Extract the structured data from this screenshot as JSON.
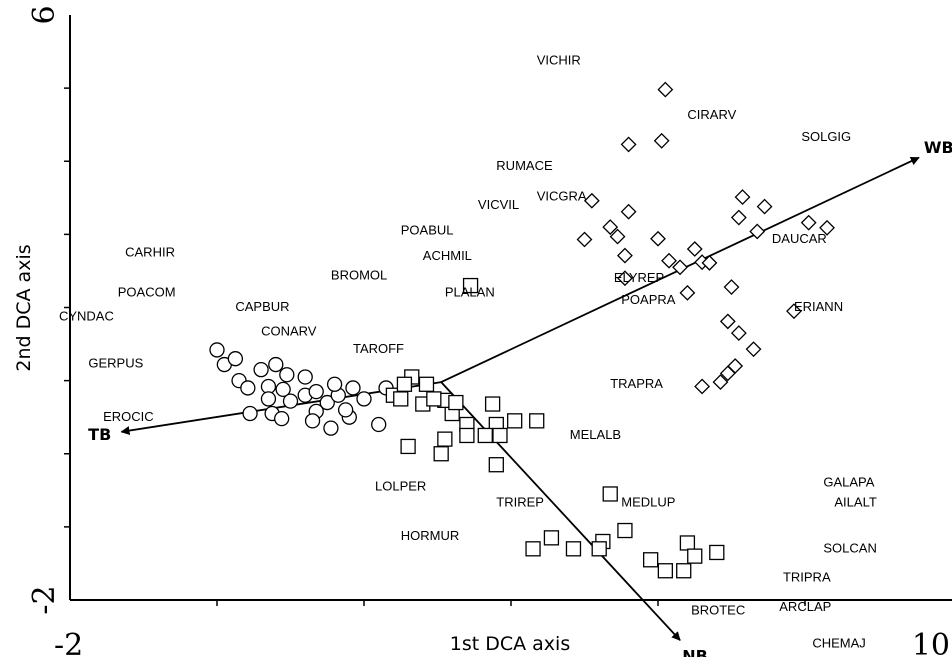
{
  "chart_data": {
    "type": "scatter",
    "xlabel": "1st DCA axis",
    "ylabel": "2nd DCA axis",
    "xlim": [
      -2,
      10
    ],
    "ylim": [
      -2,
      6
    ],
    "x_tick_labels": [
      {
        "value": -2,
        "label": "-2"
      },
      {
        "value": 10,
        "label": "10"
      }
    ],
    "y_tick_labels": [
      {
        "value": -2,
        "label": "-2"
      },
      {
        "value": 6,
        "label": "6"
      }
    ],
    "x_minor_ticks": [
      0,
      2,
      4,
      6,
      8
    ],
    "y_minor_ticks": [
      -1,
      0,
      1,
      2,
      3,
      4,
      5
    ],
    "grid": false,
    "series": [
      {
        "marker": "circle",
        "points": [
          {
            "x": 0.0,
            "y": 1.42
          },
          {
            "x": 0.1,
            "y": 1.22
          },
          {
            "x": 0.3,
            "y": 1.0
          },
          {
            "x": 0.25,
            "y": 1.3
          },
          {
            "x": 0.6,
            "y": 1.15
          },
          {
            "x": 0.8,
            "y": 1.22
          },
          {
            "x": 0.95,
            "y": 1.08
          },
          {
            "x": 0.7,
            "y": 0.92
          },
          {
            "x": 0.9,
            "y": 0.88
          },
          {
            "x": 0.42,
            "y": 0.9
          },
          {
            "x": 0.7,
            "y": 0.75
          },
          {
            "x": 1.2,
            "y": 1.05
          },
          {
            "x": 1.0,
            "y": 0.72
          },
          {
            "x": 1.2,
            "y": 0.8
          },
          {
            "x": 0.45,
            "y": 0.55
          },
          {
            "x": 0.75,
            "y": 0.55
          },
          {
            "x": 0.88,
            "y": 0.48
          },
          {
            "x": 1.35,
            "y": 0.58
          },
          {
            "x": 1.5,
            "y": 0.7
          },
          {
            "x": 1.65,
            "y": 0.8
          },
          {
            "x": 1.6,
            "y": 0.95
          },
          {
            "x": 1.85,
            "y": 0.9
          },
          {
            "x": 1.3,
            "y": 0.45
          },
          {
            "x": 1.55,
            "y": 0.35
          },
          {
            "x": 1.8,
            "y": 0.5
          },
          {
            "x": 1.35,
            "y": 0.85
          },
          {
            "x": 1.75,
            "y": 0.6
          },
          {
            "x": 2.2,
            "y": 0.4
          },
          {
            "x": 2.0,
            "y": 0.75
          },
          {
            "x": 2.3,
            "y": 0.9
          }
        ]
      },
      {
        "marker": "square",
        "points": [
          {
            "x": 3.45,
            "y": 2.3
          },
          {
            "x": 2.65,
            "y": 1.05
          },
          {
            "x": 2.85,
            "y": 0.95
          },
          {
            "x": 2.8,
            "y": 0.68
          },
          {
            "x": 3.75,
            "y": 0.68
          },
          {
            "x": 3.2,
            "y": 0.55
          },
          {
            "x": 3.1,
            "y": 0.73
          },
          {
            "x": 2.4,
            "y": 0.8
          },
          {
            "x": 2.55,
            "y": 0.95
          },
          {
            "x": 2.95,
            "y": 0.75
          },
          {
            "x": 3.05,
            "y": 0.0
          },
          {
            "x": 3.1,
            "y": 0.2
          },
          {
            "x": 2.6,
            "y": 0.1
          },
          {
            "x": 3.8,
            "y": 0.4
          },
          {
            "x": 4.05,
            "y": 0.45
          },
          {
            "x": 4.35,
            "y": 0.45
          },
          {
            "x": 3.8,
            "y": -0.15
          },
          {
            "x": 3.4,
            "y": 0.4
          },
          {
            "x": 3.4,
            "y": 0.25
          },
          {
            "x": 3.65,
            "y": 0.25
          },
          {
            "x": 3.85,
            "y": 0.25
          },
          {
            "x": 2.5,
            "y": 0.75
          },
          {
            "x": 3.25,
            "y": 0.7
          },
          {
            "x": 5.35,
            "y": -0.55
          },
          {
            "x": 5.55,
            "y": -1.05
          },
          {
            "x": 5.25,
            "y": -1.2
          },
          {
            "x": 5.2,
            "y": -1.3
          },
          {
            "x": 4.85,
            "y": -1.3
          },
          {
            "x": 4.3,
            "y": -1.3
          },
          {
            "x": 4.55,
            "y": -1.15
          },
          {
            "x": 6.4,
            "y": -1.22
          },
          {
            "x": 6.35,
            "y": -1.6
          },
          {
            "x": 6.5,
            "y": -1.4
          },
          {
            "x": 5.9,
            "y": -1.45
          },
          {
            "x": 6.1,
            "y": -1.6
          },
          {
            "x": 6.8,
            "y": -1.35
          }
        ]
      },
      {
        "marker": "diamond",
        "points": [
          {
            "x": 6.1,
            "y": 4.98
          },
          {
            "x": 5.6,
            "y": 4.23
          },
          {
            "x": 6.05,
            "y": 4.28
          },
          {
            "x": 5.1,
            "y": 3.46
          },
          {
            "x": 5.6,
            "y": 3.31
          },
          {
            "x": 5.35,
            "y": 3.1
          },
          {
            "x": 5.0,
            "y": 2.93
          },
          {
            "x": 5.45,
            "y": 2.97
          },
          {
            "x": 5.55,
            "y": 2.71
          },
          {
            "x": 6.0,
            "y": 2.94
          },
          {
            "x": 6.15,
            "y": 2.64
          },
          {
            "x": 6.5,
            "y": 2.8
          },
          {
            "x": 6.3,
            "y": 2.55
          },
          {
            "x": 5.55,
            "y": 2.4
          },
          {
            "x": 7.15,
            "y": 3.51
          },
          {
            "x": 7.45,
            "y": 3.38
          },
          {
            "x": 7.1,
            "y": 3.23
          },
          {
            "x": 6.6,
            "y": 2.62
          },
          {
            "x": 7.35,
            "y": 3.04
          },
          {
            "x": 8.3,
            "y": 3.09
          },
          {
            "x": 8.05,
            "y": 3.16
          },
          {
            "x": 6.7,
            "y": 2.61
          },
          {
            "x": 7.0,
            "y": 2.28
          },
          {
            "x": 6.4,
            "y": 2.2
          },
          {
            "x": 6.95,
            "y": 1.81
          },
          {
            "x": 7.1,
            "y": 1.65
          },
          {
            "x": 7.85,
            "y": 1.95
          },
          {
            "x": 7.3,
            "y": 1.43
          },
          {
            "x": 7.05,
            "y": 1.2
          },
          {
            "x": 6.85,
            "y": 0.98
          },
          {
            "x": 6.6,
            "y": 0.92
          },
          {
            "x": 6.95,
            "y": 1.1
          }
        ]
      }
    ],
    "labels": [
      {
        "text": "VICHIR",
        "x": 4.35,
        "y": 5.32
      },
      {
        "text": "CIRARV",
        "x": 6.4,
        "y": 4.58
      },
      {
        "text": "SOLGIG",
        "x": 7.95,
        "y": 4.28
      },
      {
        "text": "RUMACE",
        "x": 3.8,
        "y": 3.88
      },
      {
        "text": "VICGRA",
        "x": 4.35,
        "y": 3.46
      },
      {
        "text": "VICVIL",
        "x": 3.55,
        "y": 3.35
      },
      {
        "text": "DAUCAR",
        "x": 7.55,
        "y": 2.88
      },
      {
        "text": "POABUL",
        "x": 2.5,
        "y": 3.0
      },
      {
        "text": "ACHMIL",
        "x": 2.8,
        "y": 2.65
      },
      {
        "text": "CARHIR",
        "x": -1.25,
        "y": 2.7
      },
      {
        "text": "BROMOL",
        "x": 1.55,
        "y": 2.38
      },
      {
        "text": "ELYREP",
        "x": 5.4,
        "y": 2.35
      },
      {
        "text": "POACOM",
        "x": -1.35,
        "y": 2.15
      },
      {
        "text": "PLALAN",
        "x": 3.1,
        "y": 2.15
      },
      {
        "text": "POAPRA",
        "x": 5.5,
        "y": 2.05
      },
      {
        "text": "CAPBUR",
        "x": 0.25,
        "y": 1.95
      },
      {
        "text": "CYNDAC",
        "x": -2.15,
        "y": 1.82
      },
      {
        "text": "ERIANN",
        "x": 7.85,
        "y": 1.95
      },
      {
        "text": "CONARV",
        "x": 0.6,
        "y": 1.62
      },
      {
        "text": "TAROFF",
        "x": 1.85,
        "y": 1.38
      },
      {
        "text": "GERPUS",
        "x": -1.75,
        "y": 1.18
      },
      {
        "text": "TRAPRA",
        "x": 5.35,
        "y": 0.9
      },
      {
        "text": "EROCIC",
        "x": -1.55,
        "y": 0.45
      },
      {
        "text": "MELALB",
        "x": 4.8,
        "y": 0.2
      },
      {
        "text": "GALAPA",
        "x": 8.25,
        "y": -0.45
      },
      {
        "text": "LOLPER",
        "x": 2.15,
        "y": -0.5
      },
      {
        "text": "TRIREP",
        "x": 3.8,
        "y": -0.72
      },
      {
        "text": "MEDLUP",
        "x": 5.5,
        "y": -0.72
      },
      {
        "text": "AILALT",
        "x": 8.4,
        "y": -0.72
      },
      {
        "text": "HORMUR",
        "x": 2.5,
        "y": -1.18
      },
      {
        "text": "SOLCAN",
        "x": 8.25,
        "y": -1.35
      },
      {
        "text": "TRIPRA",
        "x": 7.7,
        "y": -1.75
      },
      {
        "text": "BROTEC",
        "x": 6.45,
        "y": -2.2
      },
      {
        "text": "ARCLAP",
        "x": 7.65,
        "y": -2.15
      },
      {
        "text": "CHEMAJ",
        "x": 8.1,
        "y": -2.65
      }
    ],
    "vectors": [
      {
        "name": "WB",
        "x1": 3.05,
        "y1": 0.98,
        "x2": 9.55,
        "y2": 4.05
      },
      {
        "name": "TB",
        "x1": 3.05,
        "y1": 0.98,
        "x2": -1.3,
        "y2": 0.3
      },
      {
        "name": "NB",
        "x1": 3.05,
        "y1": 0.98,
        "x2": 6.3,
        "y2": -2.55
      }
    ]
  }
}
